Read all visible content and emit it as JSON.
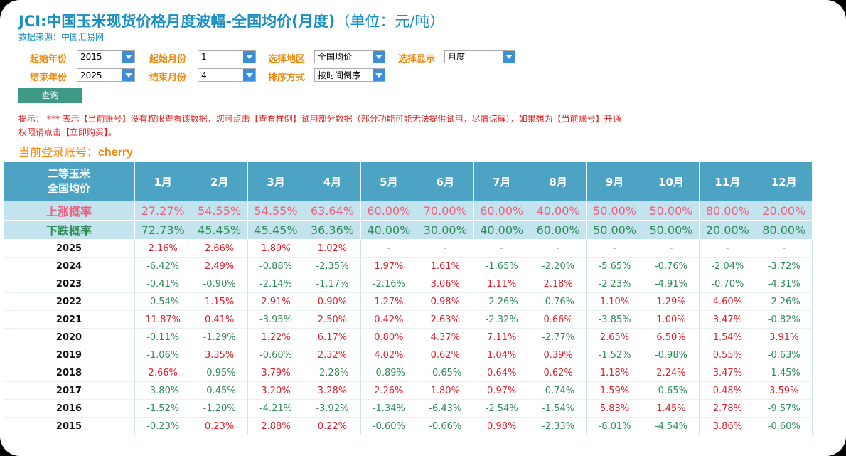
{
  "header": {
    "title": "JCI:中国玉米现货价格月度波幅-全国均价(月度)",
    "unit": "（单位：元/吨）",
    "source": "数据来源：中国汇易网"
  },
  "filters": [
    {
      "label": "起始年份",
      "value": "2015"
    },
    {
      "label": "起始月份",
      "value": "1"
    },
    {
      "label": "选择地区",
      "value": "全国均价"
    },
    {
      "label": "选择显示",
      "value": "月度"
    },
    {
      "label": "结束年份",
      "value": "2025"
    },
    {
      "label": "结束月份",
      "value": "4"
    },
    {
      "label": "排序方式",
      "value": "按时间倒序"
    }
  ],
  "button": "查询",
  "notice": [
    "提示： *** 表示【当前账号】没有权限查看该数据，您可点击【查看样例】试用部分数据（部分功能可能无法提供试用，尽情谅解），如果想为【当前账号】开通",
    "权限请点击【立即购买】。"
  ],
  "account": {
    "label": "当前登录账号：",
    "user": "cherry"
  },
  "table": {
    "corner": [
      "二等玉米",
      "全国均价"
    ],
    "months": [
      "1月",
      "2月",
      "3月",
      "4月",
      "5月",
      "6月",
      "7月",
      "8月",
      "9月",
      "10月",
      "11月",
      "12月"
    ],
    "up": {
      "label": "上涨概率",
      "values": [
        "27.27%",
        "54.55%",
        "54.55%",
        "63.64%",
        "60.00%",
        "70.00%",
        "60.00%",
        "40.00%",
        "50.00%",
        "50.00%",
        "80.00%",
        "20.00%"
      ]
    },
    "down": {
      "label": "下跌概率",
      "values": [
        "72.73%",
        "45.45%",
        "45.45%",
        "36.36%",
        "40.00%",
        "30.00%",
        "40.00%",
        "60.00%",
        "50.00%",
        "50.00%",
        "20.00%",
        "80.00%"
      ]
    },
    "rows": [
      {
        "year": "2025",
        "values": [
          "2.16%",
          "2.66%",
          "1.89%",
          "1.02%",
          "-",
          "-",
          "-",
          "-",
          "-",
          "-",
          "-",
          "-"
        ]
      },
      {
        "year": "2024",
        "values": [
          "-6.42%",
          "2.49%",
          "-0.88%",
          "-2.35%",
          "1.97%",
          "1.61%",
          "-1.65%",
          "-2.20%",
          "-5.65%",
          "-0.76%",
          "-2.04%",
          "-3.72%"
        ]
      },
      {
        "year": "2023",
        "values": [
          "-0.41%",
          "-0.90%",
          "-2.14%",
          "-1.17%",
          "-2.16%",
          "3.06%",
          "1.11%",
          "2.18%",
          "-2.23%",
          "-4.91%",
          "-0.70%",
          "-4.31%"
        ]
      },
      {
        "year": "2022",
        "values": [
          "-0.54%",
          "1.15%",
          "2.91%",
          "0.90%",
          "1.27%",
          "0.98%",
          "-2.26%",
          "-0.76%",
          "1.10%",
          "1.29%",
          "4.60%",
          "-2.26%"
        ]
      },
      {
        "year": "2021",
        "values": [
          "11.87%",
          "0.41%",
          "-3.95%",
          "2.50%",
          "0.42%",
          "2.63%",
          "-2.32%",
          "0.66%",
          "-3.85%",
          "1.00%",
          "3.47%",
          "-0.82%"
        ]
      },
      {
        "year": "2020",
        "values": [
          "-0.11%",
          "-1.29%",
          "1.22%",
          "6.17%",
          "0.80%",
          "4.37%",
          "7.11%",
          "-2.77%",
          "2.65%",
          "6.50%",
          "1.54%",
          "3.91%"
        ]
      },
      {
        "year": "2019",
        "values": [
          "-1.06%",
          "3.35%",
          "-0.60%",
          "2.32%",
          "4.02%",
          "0.62%",
          "1.04%",
          "0.39%",
          "-1.52%",
          "-0.98%",
          "0.55%",
          "-0.63%"
        ]
      },
      {
        "year": "2018",
        "values": [
          "2.66%",
          "-0.95%",
          "3.79%",
          "-2.28%",
          "-0.89%",
          "-0.65%",
          "0.64%",
          "0.62%",
          "1.18%",
          "2.24%",
          "3.47%",
          "-1.45%"
        ]
      },
      {
        "year": "2017",
        "values": [
          "-3.80%",
          "-0.45%",
          "3.20%",
          "3.28%",
          "2.26%",
          "1.80%",
          "0.97%",
          "-0.74%",
          "1.59%",
          "-0.65%",
          "0.48%",
          "3.59%"
        ]
      },
      {
        "year": "2016",
        "values": [
          "-1.52%",
          "-1.20%",
          "-4.21%",
          "-3.92%",
          "-1.34%",
          "-6.43%",
          "-2.54%",
          "-1.54%",
          "5.83%",
          "1.45%",
          "2.78%",
          "-9.57%"
        ]
      },
      {
        "year": "2015",
        "values": [
          "-0.23%",
          "0.23%",
          "2.88%",
          "0.22%",
          "-0.60%",
          "-0.66%",
          "0.98%",
          "-2.33%",
          "-8.01%",
          "-4.54%",
          "3.86%",
          "-0.60%"
        ]
      }
    ]
  }
}
